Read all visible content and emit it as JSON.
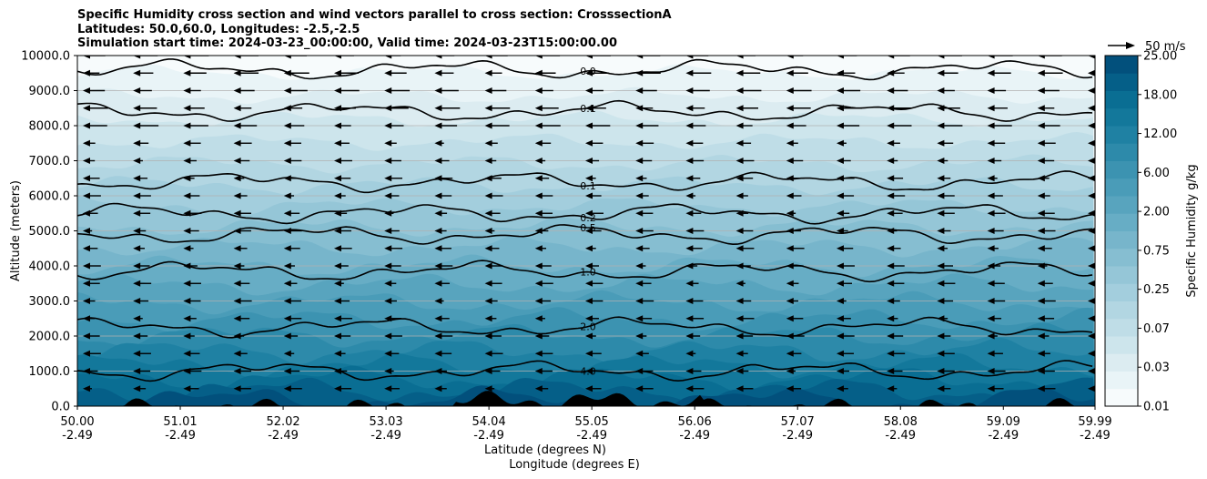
{
  "title_lines": [
    "Specific Humidity cross section and wind vectors parallel to cross section: CrosssectionA",
    "Latitudes: 50.0,60.0, Longitudes: -2.5,-2.5",
    "Simulation start time: 2024-03-23_00:00:00, Valid time: 2024-03-23T15:00:00.00"
  ],
  "chart_data": {
    "type": "heatmap",
    "subtype": "filled-contour cross section with contour lines and wind quiver",
    "x_ticks": [
      {
        "lat": "50.00",
        "lon": "-2.49"
      },
      {
        "lat": "51.01",
        "lon": "-2.49"
      },
      {
        "lat": "52.02",
        "lon": "-2.49"
      },
      {
        "lat": "53.03",
        "lon": "-2.49"
      },
      {
        "lat": "54.04",
        "lon": "-2.49"
      },
      {
        "lat": "55.05",
        "lon": "-2.49"
      },
      {
        "lat": "56.06",
        "lon": "-2.49"
      },
      {
        "lat": "57.07",
        "lon": "-2.49"
      },
      {
        "lat": "58.08",
        "lon": "-2.49"
      },
      {
        "lat": "59.09",
        "lon": "-2.49"
      },
      {
        "lat": "59.99",
        "lon": "-2.49"
      }
    ],
    "xlim": [
      50.0,
      59.99
    ],
    "y_ticks": [
      "0.0",
      "1000.0",
      "2000.0",
      "3000.0",
      "4000.0",
      "5000.0",
      "6000.0",
      "7000.0",
      "8000.0",
      "9000.0",
      "10000.0"
    ],
    "ylim": [
      0,
      10000
    ],
    "xlabel_lat": "Latitude (degrees N)",
    "xlabel_lon": "Longitude (degrees E)",
    "ylabel": "Altitude (meters)",
    "grid": "horizontal",
    "colorbar": {
      "label": "Specific Humidity g/kg",
      "tick_labels": [
        "0.01",
        "0.03",
        "0.07",
        "0.25",
        "0.75",
        "2.00",
        "6.00",
        "12.00",
        "18.00",
        "25.00"
      ],
      "levels": 20,
      "colors": [
        "#f7fbfc",
        "#e9f4f7",
        "#dcecf1",
        "#cde5ec",
        "#bfdde7",
        "#b2d6e2",
        "#a3cedd",
        "#95c6d7",
        "#86bed1",
        "#77b5cb",
        "#67adc5",
        "#58a4be",
        "#4a9cb8",
        "#3c93b1",
        "#2d8aaa",
        "#1f81a3",
        "#13789b",
        "#0a6e93",
        "#055f88",
        "#02507c"
      ]
    },
    "contours": [
      {
        "label": "0.0",
        "level_y": 9600
      },
      {
        "label": "0.1",
        "level_y": 8400
      },
      {
        "label": "0.1",
        "level_y": 6400
      },
      {
        "label": "0.2",
        "level_y": 5500
      },
      {
        "label": "0.5",
        "level_y": 4900
      },
      {
        "label": "1.0",
        "level_y": 3850
      },
      {
        "label": "2.0",
        "level_y": 2250
      },
      {
        "label": "4.0",
        "level_y": 1000
      }
    ],
    "quiver_key": {
      "label": "50 m/s",
      "magnitude": 50
    },
    "wind_direction": "southward (arrows point left)"
  }
}
